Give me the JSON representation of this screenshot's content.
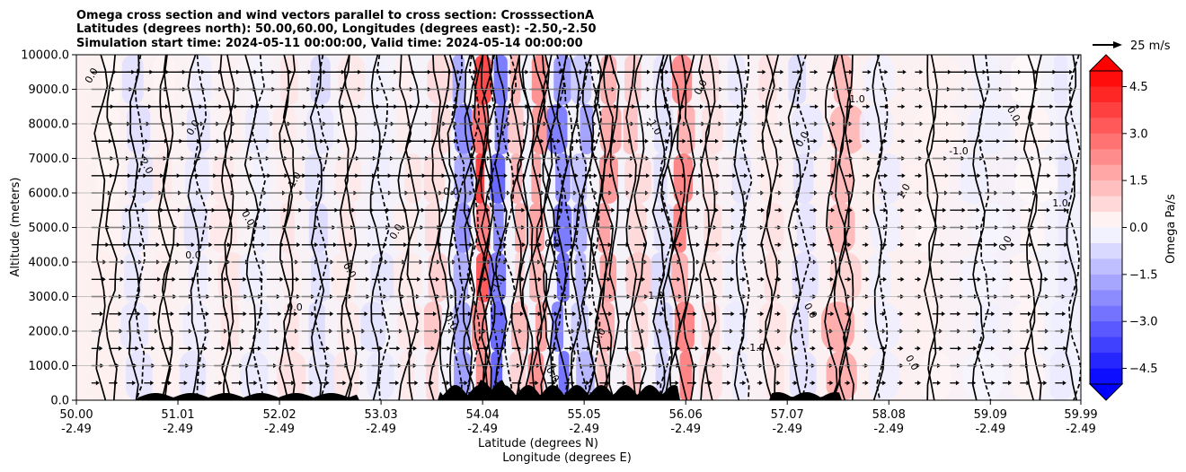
{
  "chart_data": {
    "type": "heatmap",
    "title_lines": [
      "Omega cross section and wind vectors parallel to cross section: CrosssectionA",
      "Latitudes (degrees north): 50.00,60.00, Longitudes (degrees east): -2.50,-2.50",
      "Simulation start time: 2024-05-11 00:00:00, Valid time: 2024-05-14 00:00:00"
    ],
    "ylabel": "Altitude (meters)",
    "xlabel_lat": "Latitude (degrees N)",
    "xlabel_lon": "Longitude (degrees E)",
    "ylim": [
      0,
      10000
    ],
    "xlim": [
      50.0,
      59.99
    ],
    "y_ticks": [
      "0.0",
      "1000.0",
      "2000.0",
      "3000.0",
      "4000.0",
      "5000.0",
      "6000.0",
      "7000.0",
      "8000.0",
      "9000.0",
      "10000.0"
    ],
    "y_tick_values": [
      0,
      1000,
      2000,
      3000,
      4000,
      5000,
      6000,
      7000,
      8000,
      9000,
      10000
    ],
    "x_ticks_lat": [
      "50.00",
      "51.01",
      "52.02",
      "53.03",
      "54.04",
      "55.05",
      "56.06",
      "57.07",
      "58.08",
      "59.09",
      "59.99"
    ],
    "x_ticks_lon": [
      "-2.49",
      "-2.49",
      "-2.49",
      "-2.49",
      "-2.49",
      "-2.49",
      "-2.49",
      "-2.49",
      "-2.49",
      "-2.49",
      "-2.49"
    ],
    "x_tick_values": [
      50.0,
      51.01,
      52.02,
      53.03,
      54.04,
      55.05,
      56.06,
      57.07,
      58.08,
      59.09,
      59.99
    ],
    "grid": true,
    "colorbar": {
      "label": "Omega Pa/s",
      "range": [
        -5.0,
        5.0
      ],
      "ticks": [
        "4.5",
        "3.0",
        "1.5",
        "0.0",
        "−1.5",
        "−3.0",
        "−4.5"
      ],
      "tick_values": [
        4.5,
        3.0,
        1.5,
        0.0,
        -1.5,
        -3.0,
        -4.5
      ],
      "extend": "both",
      "colormap": "bwr"
    },
    "reference_vector": {
      "label": "25 m/s",
      "speed": 25
    },
    "contour_levels": [
      -2.0,
      -1.0,
      0.0,
      1.0,
      2.0
    ],
    "contour_labels": [
      "0.0",
      "0.0",
      "0.0",
      "0.0",
      "0.0",
      "0.0",
      "1.0",
      "-1.0",
      "0.0",
      "0.0",
      "-1.0",
      "2.0",
      "-1.0",
      "1.0",
      "0.0",
      "0.0",
      "-1.0",
      "0.0",
      "0.0",
      "1.0",
      "0.0",
      "0.0",
      "0.0",
      "0.0",
      "1.0",
      "0.0",
      "-1.0",
      "0.0"
    ],
    "strong_ascent_latitudes": [
      53.9,
      54.2,
      54.8,
      55.05
    ],
    "strong_descent_latitudes": [
      54.02,
      54.6,
      55.2,
      56.0,
      57.6
    ],
    "columns": [
      {
        "lat": 50.3,
        "omega": 0.3
      },
      {
        "lat": 50.6,
        "omega": -0.6
      },
      {
        "lat": 50.9,
        "omega": 0.4
      },
      {
        "lat": 51.2,
        "omega": -0.5
      },
      {
        "lat": 51.5,
        "omega": 0.5
      },
      {
        "lat": 51.8,
        "omega": -0.4
      },
      {
        "lat": 52.1,
        "omega": 0.6
      },
      {
        "lat": 52.4,
        "omega": -0.7
      },
      {
        "lat": 52.7,
        "omega": 0.5
      },
      {
        "lat": 53.0,
        "omega": -0.5
      },
      {
        "lat": 53.3,
        "omega": 0.6
      },
      {
        "lat": 53.6,
        "omega": 1.1
      },
      {
        "lat": 53.85,
        "omega": -2.3
      },
      {
        "lat": 54.02,
        "omega": 3.8
      },
      {
        "lat": 54.2,
        "omega": -3.2
      },
      {
        "lat": 54.4,
        "omega": 1.5
      },
      {
        "lat": 54.6,
        "omega": 2.2
      },
      {
        "lat": 54.8,
        "omega": -2.8
      },
      {
        "lat": 55.05,
        "omega": -1.9
      },
      {
        "lat": 55.25,
        "omega": 2.0
      },
      {
        "lat": 55.55,
        "omega": 1.4
      },
      {
        "lat": 55.85,
        "omega": -0.8
      },
      {
        "lat": 56.0,
        "omega": 2.6
      },
      {
        "lat": 56.3,
        "omega": 0.7
      },
      {
        "lat": 56.6,
        "omega": -0.5
      },
      {
        "lat": 56.9,
        "omega": 0.6
      },
      {
        "lat": 57.2,
        "omega": -0.6
      },
      {
        "lat": 57.6,
        "omega": 1.6
      },
      {
        "lat": 58.0,
        "omega": -0.4
      },
      {
        "lat": 58.5,
        "omega": 0.3
      },
      {
        "lat": 59.0,
        "omega": -0.3
      },
      {
        "lat": 59.5,
        "omega": 0.2
      },
      {
        "lat": 59.9,
        "omega": -0.5
      }
    ]
  }
}
